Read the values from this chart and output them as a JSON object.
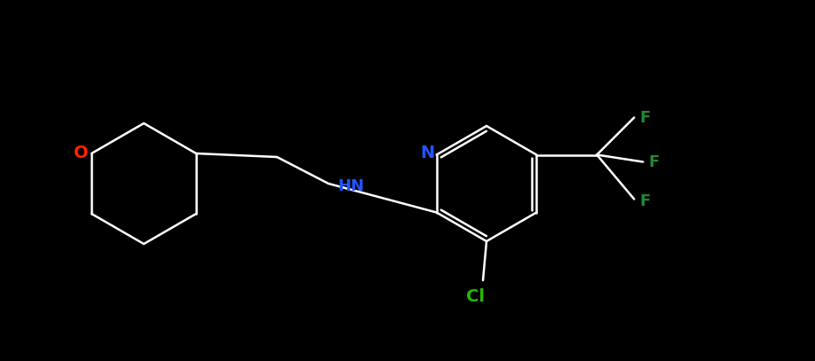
{
  "background_color": "#000000",
  "bond_color": "#ffffff",
  "atom_colors": {
    "N_pyridine": "#2255ff",
    "N_amine": "#2255ff",
    "O": "#ff2200",
    "Cl": "#22bb00",
    "F": "#228833",
    "C": "#ffffff"
  },
  "figsize": [
    9.18,
    4.07
  ],
  "dpi": 100,
  "lw": 1.8
}
